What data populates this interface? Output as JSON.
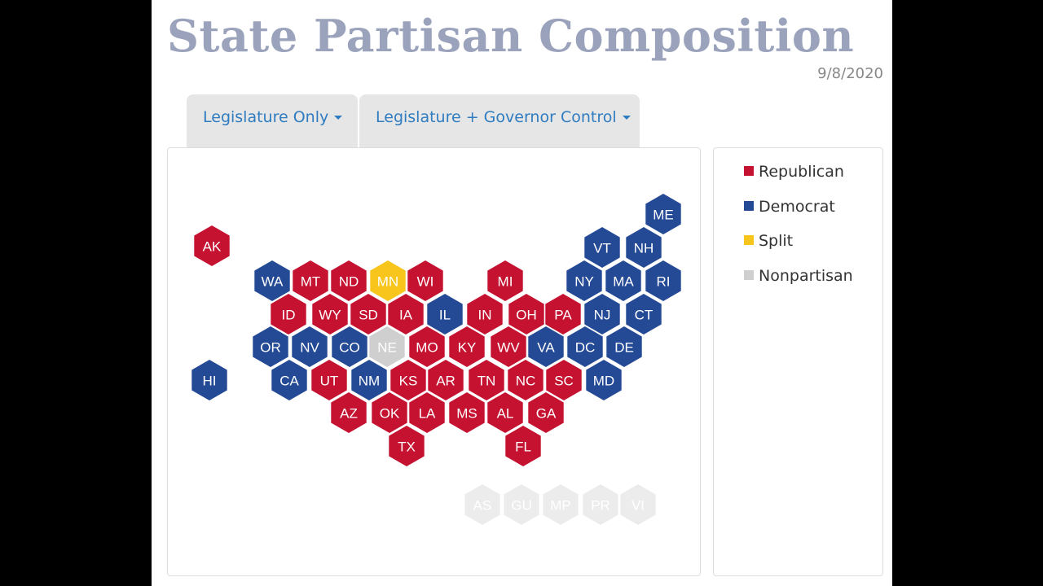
{
  "title": "State Partisan Composition",
  "date": "9/8/2020",
  "tabs": [
    {
      "label": "Legislature Only"
    },
    {
      "label": "Legislature + Governor Control"
    }
  ],
  "colors": {
    "Republican": "#c41230",
    "Democrat": "#244a96",
    "Split": "#f8c51c",
    "Nonpartisan": "#cfcfcf",
    "Territory": "#ececec"
  },
  "legend": [
    {
      "label": "Republican",
      "color": "#c41230"
    },
    {
      "label": "Democrat",
      "color": "#244a96"
    },
    {
      "label": "Split",
      "color": "#f8c51c"
    },
    {
      "label": "Nonpartisan",
      "color": "#cfcfcf"
    }
  ],
  "chart_data": {
    "type": "hexmap",
    "states": [
      {
        "abbr": "ME",
        "party": "Democrat"
      },
      {
        "abbr": "AK",
        "party": "Republican"
      },
      {
        "abbr": "VT",
        "party": "Democrat"
      },
      {
        "abbr": "NH",
        "party": "Democrat"
      },
      {
        "abbr": "WA",
        "party": "Democrat"
      },
      {
        "abbr": "MT",
        "party": "Republican"
      },
      {
        "abbr": "ND",
        "party": "Republican"
      },
      {
        "abbr": "MN",
        "party": "Split"
      },
      {
        "abbr": "WI",
        "party": "Republican"
      },
      {
        "abbr": "MI",
        "party": "Republican"
      },
      {
        "abbr": "NY",
        "party": "Democrat"
      },
      {
        "abbr": "MA",
        "party": "Democrat"
      },
      {
        "abbr": "RI",
        "party": "Democrat"
      },
      {
        "abbr": "ID",
        "party": "Republican"
      },
      {
        "abbr": "WY",
        "party": "Republican"
      },
      {
        "abbr": "SD",
        "party": "Republican"
      },
      {
        "abbr": "IA",
        "party": "Republican"
      },
      {
        "abbr": "IL",
        "party": "Democrat"
      },
      {
        "abbr": "IN",
        "party": "Republican"
      },
      {
        "abbr": "OH",
        "party": "Republican"
      },
      {
        "abbr": "PA",
        "party": "Republican"
      },
      {
        "abbr": "NJ",
        "party": "Democrat"
      },
      {
        "abbr": "CT",
        "party": "Democrat"
      },
      {
        "abbr": "OR",
        "party": "Democrat"
      },
      {
        "abbr": "NV",
        "party": "Democrat"
      },
      {
        "abbr": "CO",
        "party": "Democrat"
      },
      {
        "abbr": "NE",
        "party": "Nonpartisan"
      },
      {
        "abbr": "MO",
        "party": "Republican"
      },
      {
        "abbr": "KY",
        "party": "Republican"
      },
      {
        "abbr": "WV",
        "party": "Republican"
      },
      {
        "abbr": "VA",
        "party": "Democrat"
      },
      {
        "abbr": "DC",
        "party": "Democrat"
      },
      {
        "abbr": "DE",
        "party": "Democrat"
      },
      {
        "abbr": "HI",
        "party": "Democrat"
      },
      {
        "abbr": "CA",
        "party": "Democrat"
      },
      {
        "abbr": "UT",
        "party": "Republican"
      },
      {
        "abbr": "NM",
        "party": "Democrat"
      },
      {
        "abbr": "KS",
        "party": "Republican"
      },
      {
        "abbr": "AR",
        "party": "Republican"
      },
      {
        "abbr": "TN",
        "party": "Republican"
      },
      {
        "abbr": "NC",
        "party": "Republican"
      },
      {
        "abbr": "SC",
        "party": "Republican"
      },
      {
        "abbr": "MD",
        "party": "Democrat"
      },
      {
        "abbr": "AZ",
        "party": "Republican"
      },
      {
        "abbr": "OK",
        "party": "Republican"
      },
      {
        "abbr": "LA",
        "party": "Republican"
      },
      {
        "abbr": "MS",
        "party": "Republican"
      },
      {
        "abbr": "AL",
        "party": "Republican"
      },
      {
        "abbr": "GA",
        "party": "Republican"
      },
      {
        "abbr": "TX",
        "party": "Republican"
      },
      {
        "abbr": "FL",
        "party": "Republican"
      },
      {
        "abbr": "AS",
        "party": "Territory"
      },
      {
        "abbr": "GU",
        "party": "Territory"
      },
      {
        "abbr": "MP",
        "party": "Territory"
      },
      {
        "abbr": "PR",
        "party": "Territory"
      },
      {
        "abbr": "VI",
        "party": "Territory"
      }
    ]
  }
}
